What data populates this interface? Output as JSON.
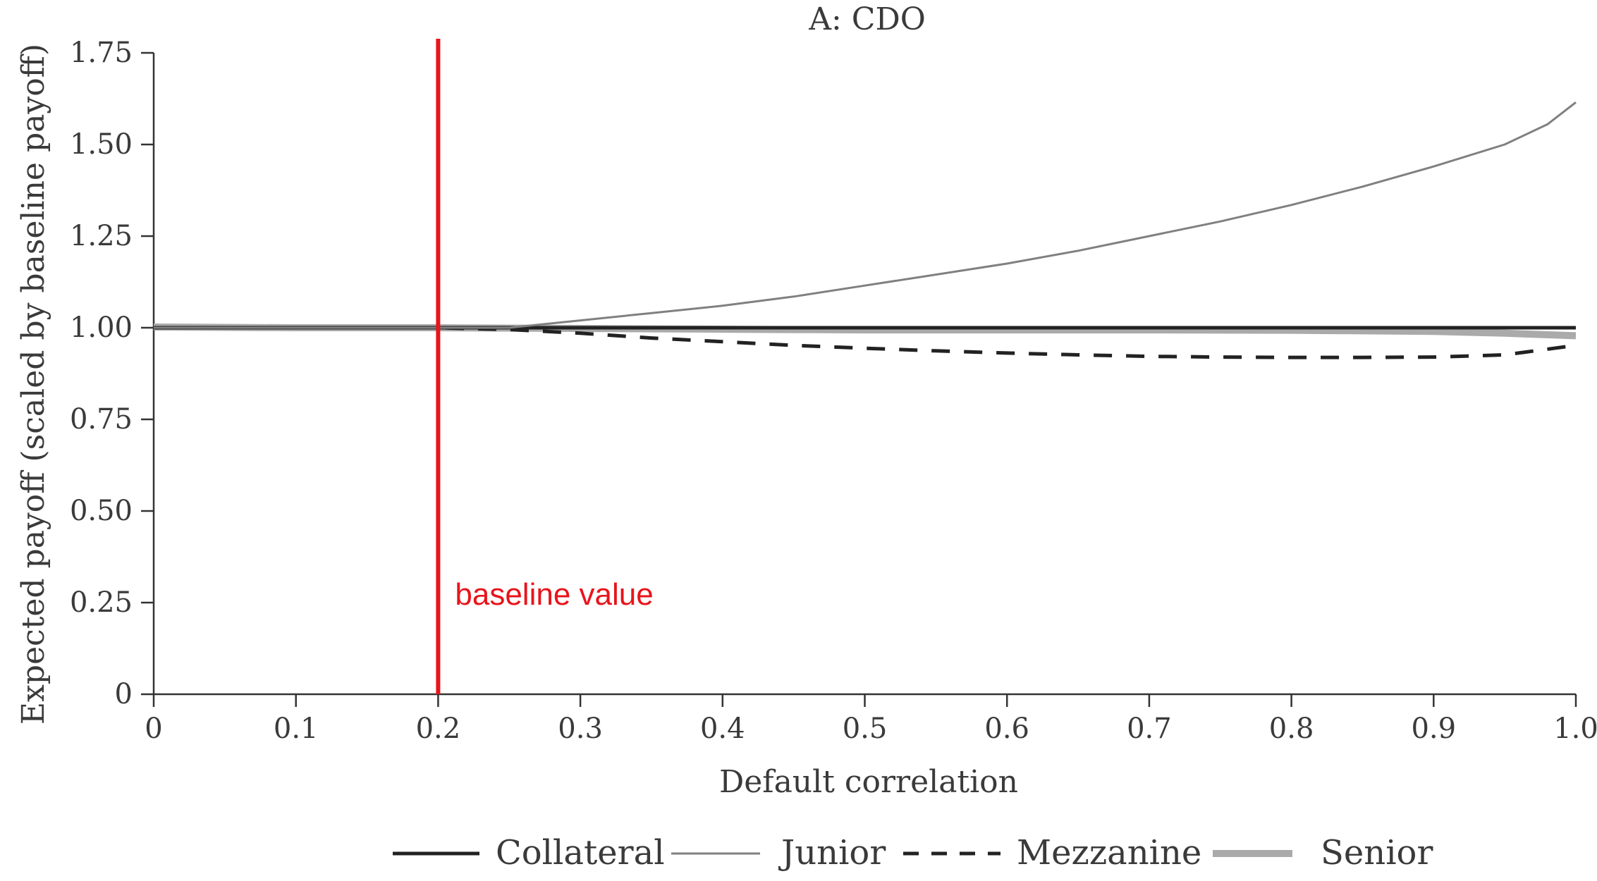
{
  "chart_data": {
    "type": "line",
    "title": "A: CDO",
    "xlabel": "Default correlation",
    "ylabel": "Expected payoff (scaled by baseline payoff)",
    "xlim": [
      0,
      1.0
    ],
    "ylim": [
      0,
      1.75
    ],
    "x_ticks": [
      0,
      0.1,
      0.2,
      0.3,
      0.4,
      0.5,
      0.6,
      0.7,
      0.8,
      0.9,
      1.0
    ],
    "x_tick_labels": [
      "0",
      "0.1",
      "0.2",
      "0.3",
      "0.4",
      "0.5",
      "0.6",
      "0.7",
      "0.8",
      "0.9",
      "1.0"
    ],
    "y_ticks": [
      0,
      0.25,
      0.5,
      0.75,
      1.0,
      1.25,
      1.5,
      1.75
    ],
    "y_tick_labels": [
      "0",
      "0.25",
      "0.50",
      "0.75",
      "1.00",
      "1.25",
      "1.50",
      "1.75"
    ],
    "grid": false,
    "legend_position": "bottom",
    "series": [
      {
        "name": "Collateral",
        "color": "#222222",
        "style": "solid-thick",
        "x": [
          0,
          0.1,
          0.2,
          0.3,
          0.4,
          0.5,
          0.6,
          0.7,
          0.8,
          0.9,
          1.0
        ],
        "y": [
          1.0,
          1.0,
          1.0,
          1.0,
          1.0,
          1.0,
          1.0,
          1.0,
          1.0,
          1.0,
          1.0
        ]
      },
      {
        "name": "Junior",
        "color": "#808080",
        "style": "solid-thin",
        "x": [
          0,
          0.1,
          0.2,
          0.25,
          0.3,
          0.35,
          0.4,
          0.45,
          0.5,
          0.55,
          0.6,
          0.65,
          0.7,
          0.75,
          0.8,
          0.85,
          0.9,
          0.95,
          0.98,
          1.0
        ],
        "y": [
          1.0,
          1.0,
          1.0,
          1.0,
          1.02,
          1.04,
          1.06,
          1.085,
          1.115,
          1.145,
          1.175,
          1.21,
          1.25,
          1.29,
          1.335,
          1.385,
          1.44,
          1.5,
          1.555,
          1.615
        ]
      },
      {
        "name": "Mezzanine",
        "color": "#222222",
        "style": "dashed",
        "x": [
          0,
          0.1,
          0.2,
          0.25,
          0.3,
          0.35,
          0.4,
          0.45,
          0.5,
          0.55,
          0.6,
          0.65,
          0.7,
          0.75,
          0.8,
          0.85,
          0.9,
          0.95,
          1.0
        ],
        "y": [
          1.0,
          1.0,
          1.0,
          0.995,
          0.985,
          0.972,
          0.962,
          0.952,
          0.944,
          0.937,
          0.931,
          0.926,
          0.922,
          0.92,
          0.919,
          0.919,
          0.92,
          0.926,
          0.952
        ]
      },
      {
        "name": "Senior",
        "color": "#aaaaaa",
        "style": "solid-wide",
        "x": [
          0,
          0.1,
          0.2,
          0.3,
          0.4,
          0.5,
          0.6,
          0.7,
          0.8,
          0.9,
          0.95,
          1.0
        ],
        "y": [
          1.002,
          1.0,
          1.0,
          0.998,
          0.996,
          0.994,
          0.994,
          0.994,
          0.993,
          0.99,
          0.985,
          0.978
        ]
      }
    ],
    "annotations": [
      {
        "type": "vline",
        "x": 0.2,
        "color": "#e8141b",
        "label": "baseline value"
      }
    ]
  }
}
